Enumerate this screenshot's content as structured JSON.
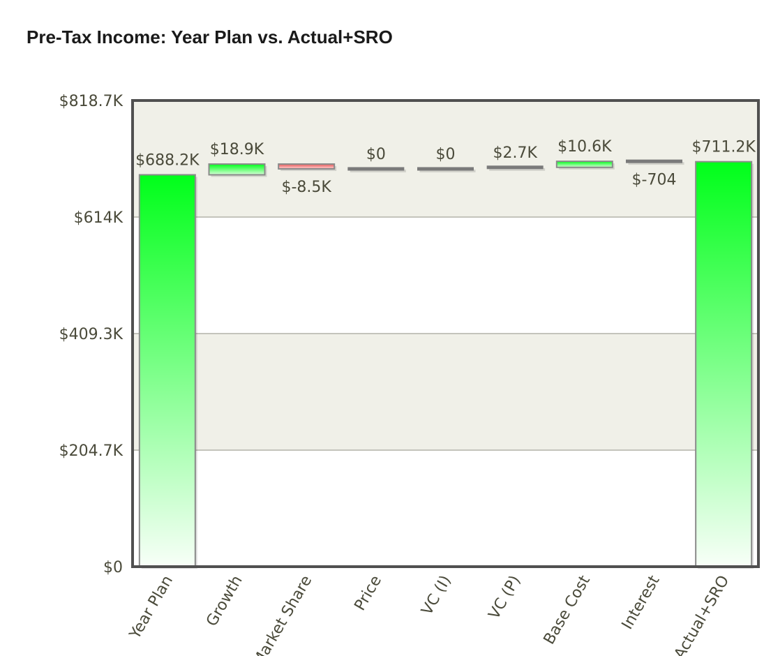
{
  "chart_data": {
    "type": "bar",
    "subtype": "waterfall",
    "title": "Pre-Tax Income: Year Plan vs. Actual+SRO",
    "xlabel": "",
    "ylabel": "",
    "ylim": [
      0,
      818.7
    ],
    "y_unit": "$K",
    "y_ticks": [
      0,
      204.7,
      409.3,
      614,
      818.7
    ],
    "y_tick_labels": [
      "$0",
      "$204.7K",
      "$409.3K",
      "$614K",
      "$818.7K"
    ],
    "grid": true,
    "legend": "none",
    "categories": [
      "Year Plan",
      "Growth",
      "Market Share",
      "Price",
      "VC (I)",
      "VC (P)",
      "Base Cost",
      "Interest",
      "Actual+SRO"
    ],
    "bars": [
      {
        "category": "Year Plan",
        "kind": "total",
        "start": 0,
        "end": 688.2,
        "value": 688.2,
        "label": "$688.2K"
      },
      {
        "category": "Growth",
        "kind": "increase",
        "start": 688.2,
        "end": 707.1,
        "value": 18.9,
        "label": "$18.9K"
      },
      {
        "category": "Market Share",
        "kind": "decrease",
        "start": 707.1,
        "end": 698.6,
        "value": -8.5,
        "label": "$-8.5K"
      },
      {
        "category": "Price",
        "kind": "zero",
        "start": 698.6,
        "end": 698.6,
        "value": 0,
        "label": "$0"
      },
      {
        "category": "VC (I)",
        "kind": "zero",
        "start": 698.6,
        "end": 698.6,
        "value": 0,
        "label": "$0"
      },
      {
        "category": "VC (P)",
        "kind": "increase",
        "start": 698.6,
        "end": 701.3,
        "value": 2.7,
        "label": "$2.7K"
      },
      {
        "category": "Base Cost",
        "kind": "increase",
        "start": 701.3,
        "end": 711.9,
        "value": 10.6,
        "label": "$10.6K"
      },
      {
        "category": "Interest",
        "kind": "decrease",
        "start": 711.9,
        "end": 711.2,
        "value": -0.704,
        "label": "$-704"
      },
      {
        "category": "Actual+SRO",
        "kind": "total",
        "start": 0,
        "end": 711.2,
        "value": 711.2,
        "label": "$711.2K"
      }
    ],
    "colors": {
      "increase": "#00ff1a",
      "decrease": "#e85a5a",
      "neutral": "#7a7a7a",
      "band": "#f0f0e8",
      "frame": "#505050"
    }
  }
}
